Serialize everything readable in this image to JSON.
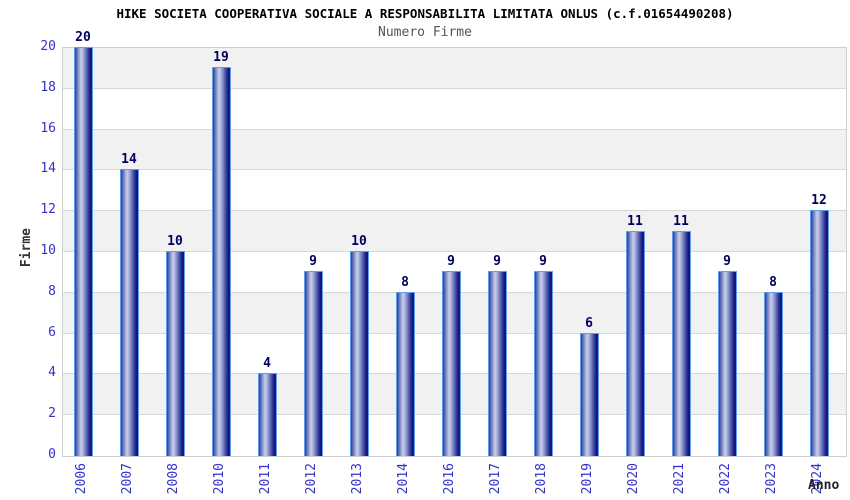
{
  "header": {
    "title": "HIKE SOCIETA COOPERATIVA SOCIALE A RESPONSABILITA LIMITATA ONLUS (c.f.01654490208)",
    "subtitle": "Numero Firme"
  },
  "chart_data": {
    "type": "bar",
    "title": "Numero Firme",
    "xlabel": "Anno",
    "ylabel": "Firme",
    "categories": [
      "2006",
      "2007",
      "2008",
      "2010",
      "2011",
      "2012",
      "2013",
      "2014",
      "2016",
      "2017",
      "2018",
      "2019",
      "2020",
      "2021",
      "2022",
      "2023",
      "2024"
    ],
    "values": [
      20,
      14,
      10,
      19,
      4,
      9,
      10,
      8,
      9,
      9,
      9,
      6,
      11,
      11,
      9,
      8,
      12
    ],
    "ylim": [
      0,
      20
    ],
    "ytick_step": 2,
    "yticks": [
      0,
      2,
      4,
      6,
      8,
      10,
      12,
      14,
      16,
      18,
      20
    ],
    "grid": true,
    "band_fill": true,
    "legend": null
  },
  "colors": {
    "tick_blue": "#3232c8",
    "value_navy": "#00005e",
    "axis_title_gray": "#333333",
    "subtitle_gray": "#555555",
    "band_gray": "#f1f1f1",
    "grid_line": "#d8d8d8",
    "plot_border": "#cfcfcf",
    "bar_border": "#5c9ff0",
    "bar_dark": "#12127a",
    "bar_light": "#c9cfeb"
  }
}
